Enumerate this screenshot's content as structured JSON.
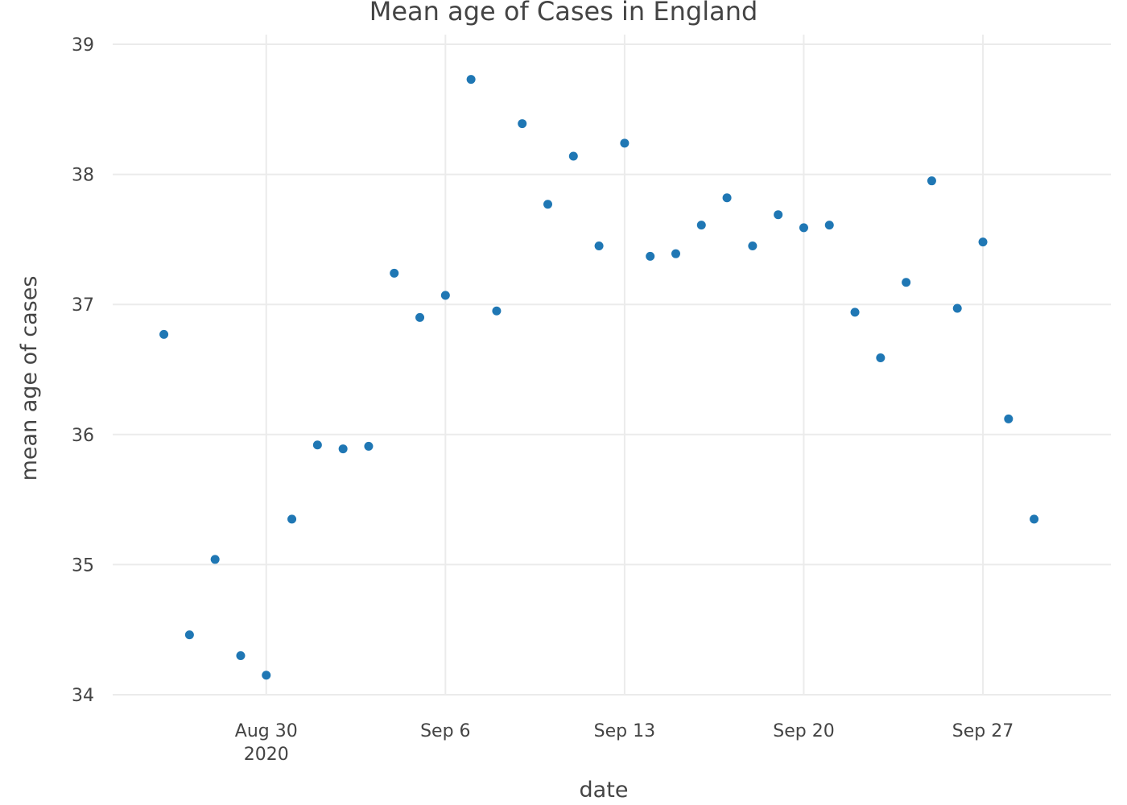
{
  "chart_data": {
    "type": "scatter",
    "title": "Mean age of Cases in England",
    "xlabel": "date",
    "ylabel": "mean age of cases",
    "xlim": [
      "2020-08-24",
      "2020-10-02"
    ],
    "ylim": [
      34,
      39
    ],
    "grid": true,
    "color": "#1f77b4",
    "x_ticks": [
      {
        "date": "2020-08-30",
        "label": "Aug 30",
        "sublabel": "2020"
      },
      {
        "date": "2020-09-06",
        "label": "Sep 6",
        "sublabel": ""
      },
      {
        "date": "2020-09-13",
        "label": "Sep 13",
        "sublabel": ""
      },
      {
        "date": "2020-09-20",
        "label": "Sep 20",
        "sublabel": ""
      },
      {
        "date": "2020-09-27",
        "label": "Sep 27",
        "sublabel": ""
      }
    ],
    "y_ticks": [
      34,
      35,
      36,
      37,
      38,
      39
    ],
    "points": [
      {
        "x": "2020-08-26",
        "y": 36.77
      },
      {
        "x": "2020-08-27",
        "y": 34.46
      },
      {
        "x": "2020-08-28",
        "y": 35.04
      },
      {
        "x": "2020-08-29",
        "y": 34.3
      },
      {
        "x": "2020-08-30",
        "y": 34.15
      },
      {
        "x": "2020-08-31",
        "y": 35.35
      },
      {
        "x": "2020-09-01",
        "y": 35.92
      },
      {
        "x": "2020-09-02",
        "y": 35.89
      },
      {
        "x": "2020-09-03",
        "y": 35.91
      },
      {
        "x": "2020-09-04",
        "y": 37.24
      },
      {
        "x": "2020-09-05",
        "y": 36.9
      },
      {
        "x": "2020-09-06",
        "y": 37.07
      },
      {
        "x": "2020-09-07",
        "y": 38.73
      },
      {
        "x": "2020-09-08",
        "y": 36.95
      },
      {
        "x": "2020-09-09",
        "y": 38.39
      },
      {
        "x": "2020-09-10",
        "y": 37.77
      },
      {
        "x": "2020-09-11",
        "y": 38.14
      },
      {
        "x": "2020-09-12",
        "y": 37.45
      },
      {
        "x": "2020-09-13",
        "y": 38.24
      },
      {
        "x": "2020-09-14",
        "y": 37.37
      },
      {
        "x": "2020-09-15",
        "y": 37.39
      },
      {
        "x": "2020-09-16",
        "y": 37.61
      },
      {
        "x": "2020-09-17",
        "y": 37.82
      },
      {
        "x": "2020-09-18",
        "y": 37.45
      },
      {
        "x": "2020-09-19",
        "y": 37.69
      },
      {
        "x": "2020-09-20",
        "y": 37.59
      },
      {
        "x": "2020-09-21",
        "y": 37.61
      },
      {
        "x": "2020-09-22",
        "y": 36.94
      },
      {
        "x": "2020-09-23",
        "y": 36.59
      },
      {
        "x": "2020-09-24",
        "y": 37.17
      },
      {
        "x": "2020-09-25",
        "y": 37.95
      },
      {
        "x": "2020-09-26",
        "y": 36.97
      },
      {
        "x": "2020-09-27",
        "y": 37.48
      },
      {
        "x": "2020-09-28",
        "y": 36.12
      },
      {
        "x": "2020-09-29",
        "y": 35.35
      }
    ]
  }
}
